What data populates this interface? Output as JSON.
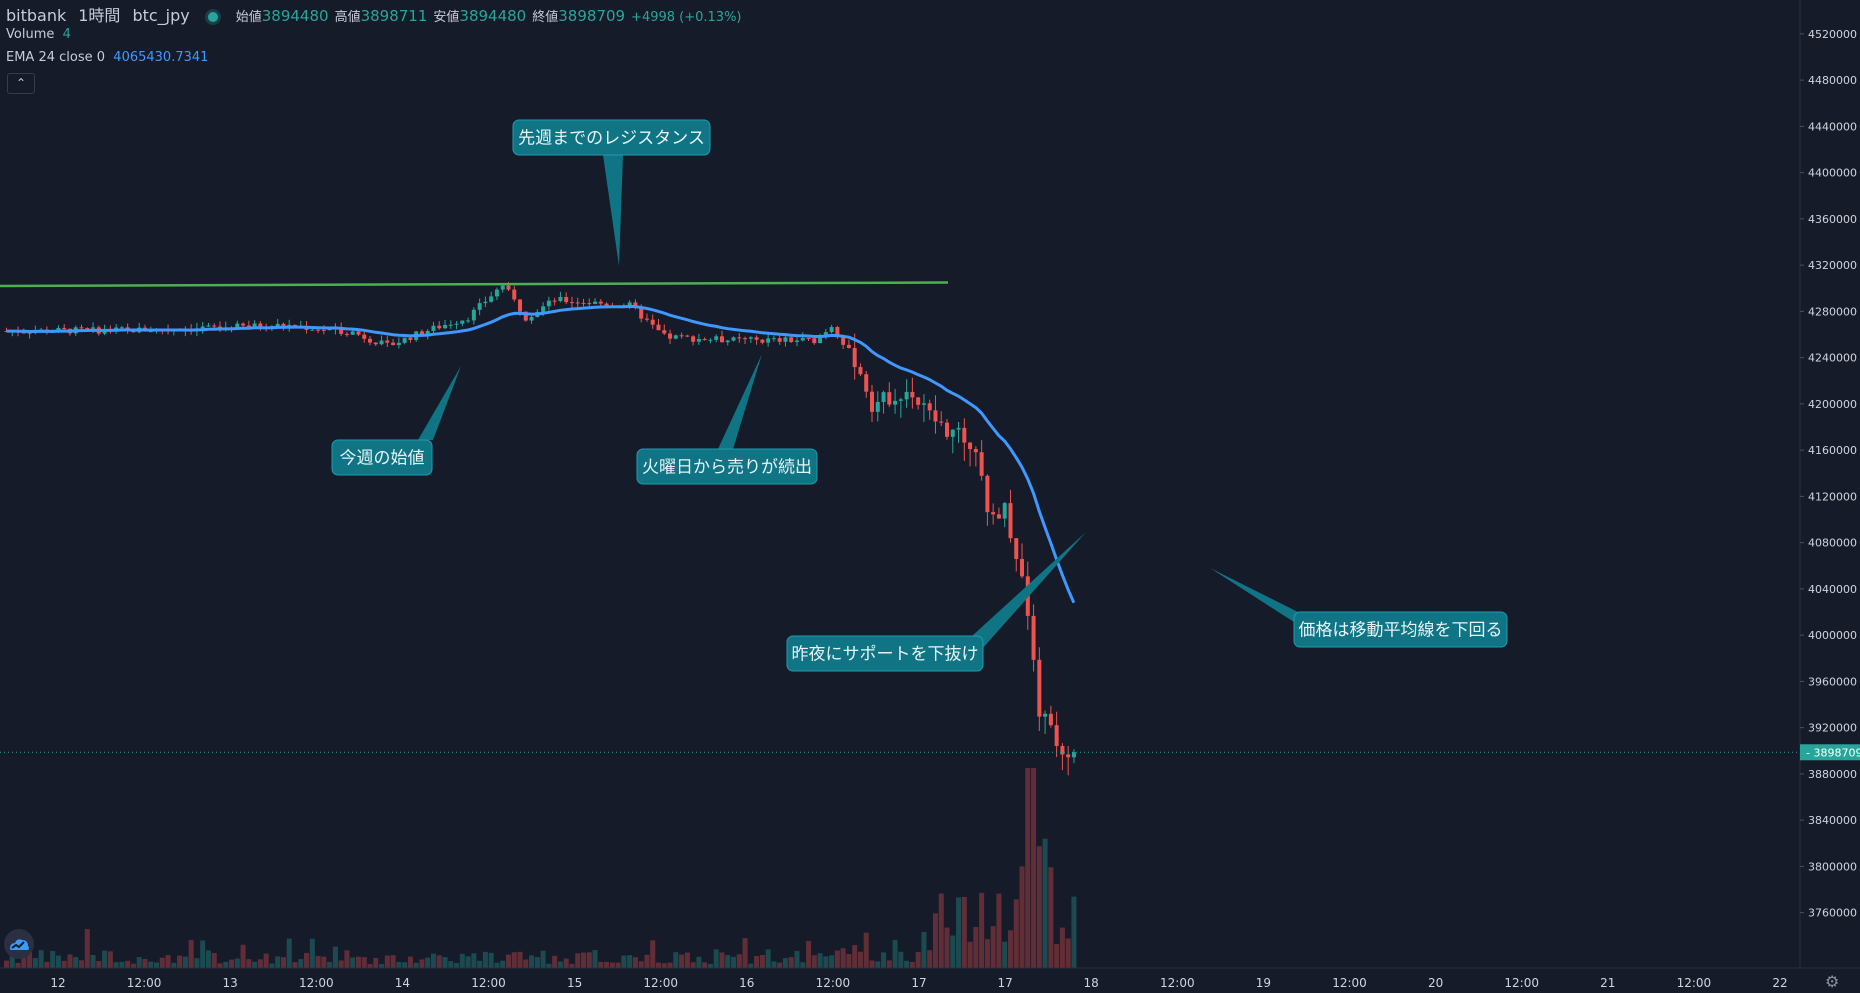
{
  "legend": {
    "ticker": "bitbank",
    "interval": "1時間",
    "symbol": "btc_jpy",
    "open_label": "始値",
    "open_value": "3894480",
    "high_label": "高値",
    "high_value": "3898711",
    "low_label": "安値",
    "low_value": "3894480",
    "close_label": "終値",
    "close_value": "3898709",
    "change": "+4998 (+0.13%)",
    "volume_label": "Volume",
    "volume_value": "4",
    "ema_label": "EMA 24 close 0",
    "ema_value": "4065430.7341"
  },
  "colors": {
    "background": "#161b2a",
    "up": "#26a69a",
    "down": "#ef5350",
    "ema": "#3f98ff",
    "resistance": "#4caf50",
    "callout": "#0f7585",
    "grid_text": "#d1d4dc"
  },
  "icons": {
    "collapse": "chevron-up-icon",
    "logo": "cloud-logo-icon",
    "settings": "gear-icon"
  },
  "chart_data": {
    "type": "candlestick",
    "y_ticks": [
      4520000,
      4480000,
      4440000,
      4400000,
      4360000,
      4320000,
      4280000,
      4240000,
      4200000,
      4160000,
      4120000,
      4080000,
      4040000,
      4000000,
      3960000,
      3920000,
      3880000,
      3840000,
      3800000,
      3760000
    ],
    "ylim": [
      3745000,
      4532000
    ],
    "x_ticks": [
      "12",
      "12:00",
      "13",
      "12:00",
      "14",
      "12:00",
      "15",
      "12:00",
      "16",
      "12:00",
      "17",
      "17",
      "18",
      "12:00",
      "19",
      "12:00",
      "20",
      "12:00",
      "21",
      "12:00",
      "22"
    ],
    "last_price": "3898709",
    "resistance": {
      "value_start": 4302000,
      "value_end": 4305000
    },
    "key_prices": [
      {
        "t": 0,
        "p": 4263000
      },
      {
        "t": 24,
        "p": 4264000
      },
      {
        "t": 48,
        "p": 4268000
      },
      {
        "t": 60,
        "p": 4262000
      },
      {
        "t": 66,
        "p": 4250000
      },
      {
        "t": 72,
        "p": 4262000
      },
      {
        "t": 80,
        "p": 4275000
      },
      {
        "t": 86,
        "p": 4303000
      },
      {
        "t": 90,
        "p": 4275000
      },
      {
        "t": 95,
        "p": 4290000
      },
      {
        "t": 108,
        "p": 4285000
      },
      {
        "t": 114,
        "p": 4258000
      },
      {
        "t": 126,
        "p": 4255000
      },
      {
        "t": 140,
        "p": 4255000
      },
      {
        "t": 143,
        "p": 4268000
      },
      {
        "t": 147,
        "p": 4238000
      },
      {
        "t": 150,
        "p": 4200000
      },
      {
        "t": 156,
        "p": 4212000
      },
      {
        "t": 162,
        "p": 4180000
      },
      {
        "t": 168,
        "p": 4165000
      },
      {
        "t": 170,
        "p": 4100000
      },
      {
        "t": 173,
        "p": 4110000
      },
      {
        "t": 176,
        "p": 4050000
      },
      {
        "t": 179,
        "p": 3935000
      },
      {
        "t": 183,
        "p": 3900000
      },
      {
        "t": 185,
        "p": 3898709
      }
    ],
    "annotations": [
      {
        "text": "先週までのレジスタンス"
      },
      {
        "text": "今週の始値"
      },
      {
        "text": "火曜日から売りが続出"
      },
      {
        "text": "昨夜にサポートを下抜け"
      },
      {
        "text": "価格は移動平均線を下回る"
      }
    ]
  }
}
